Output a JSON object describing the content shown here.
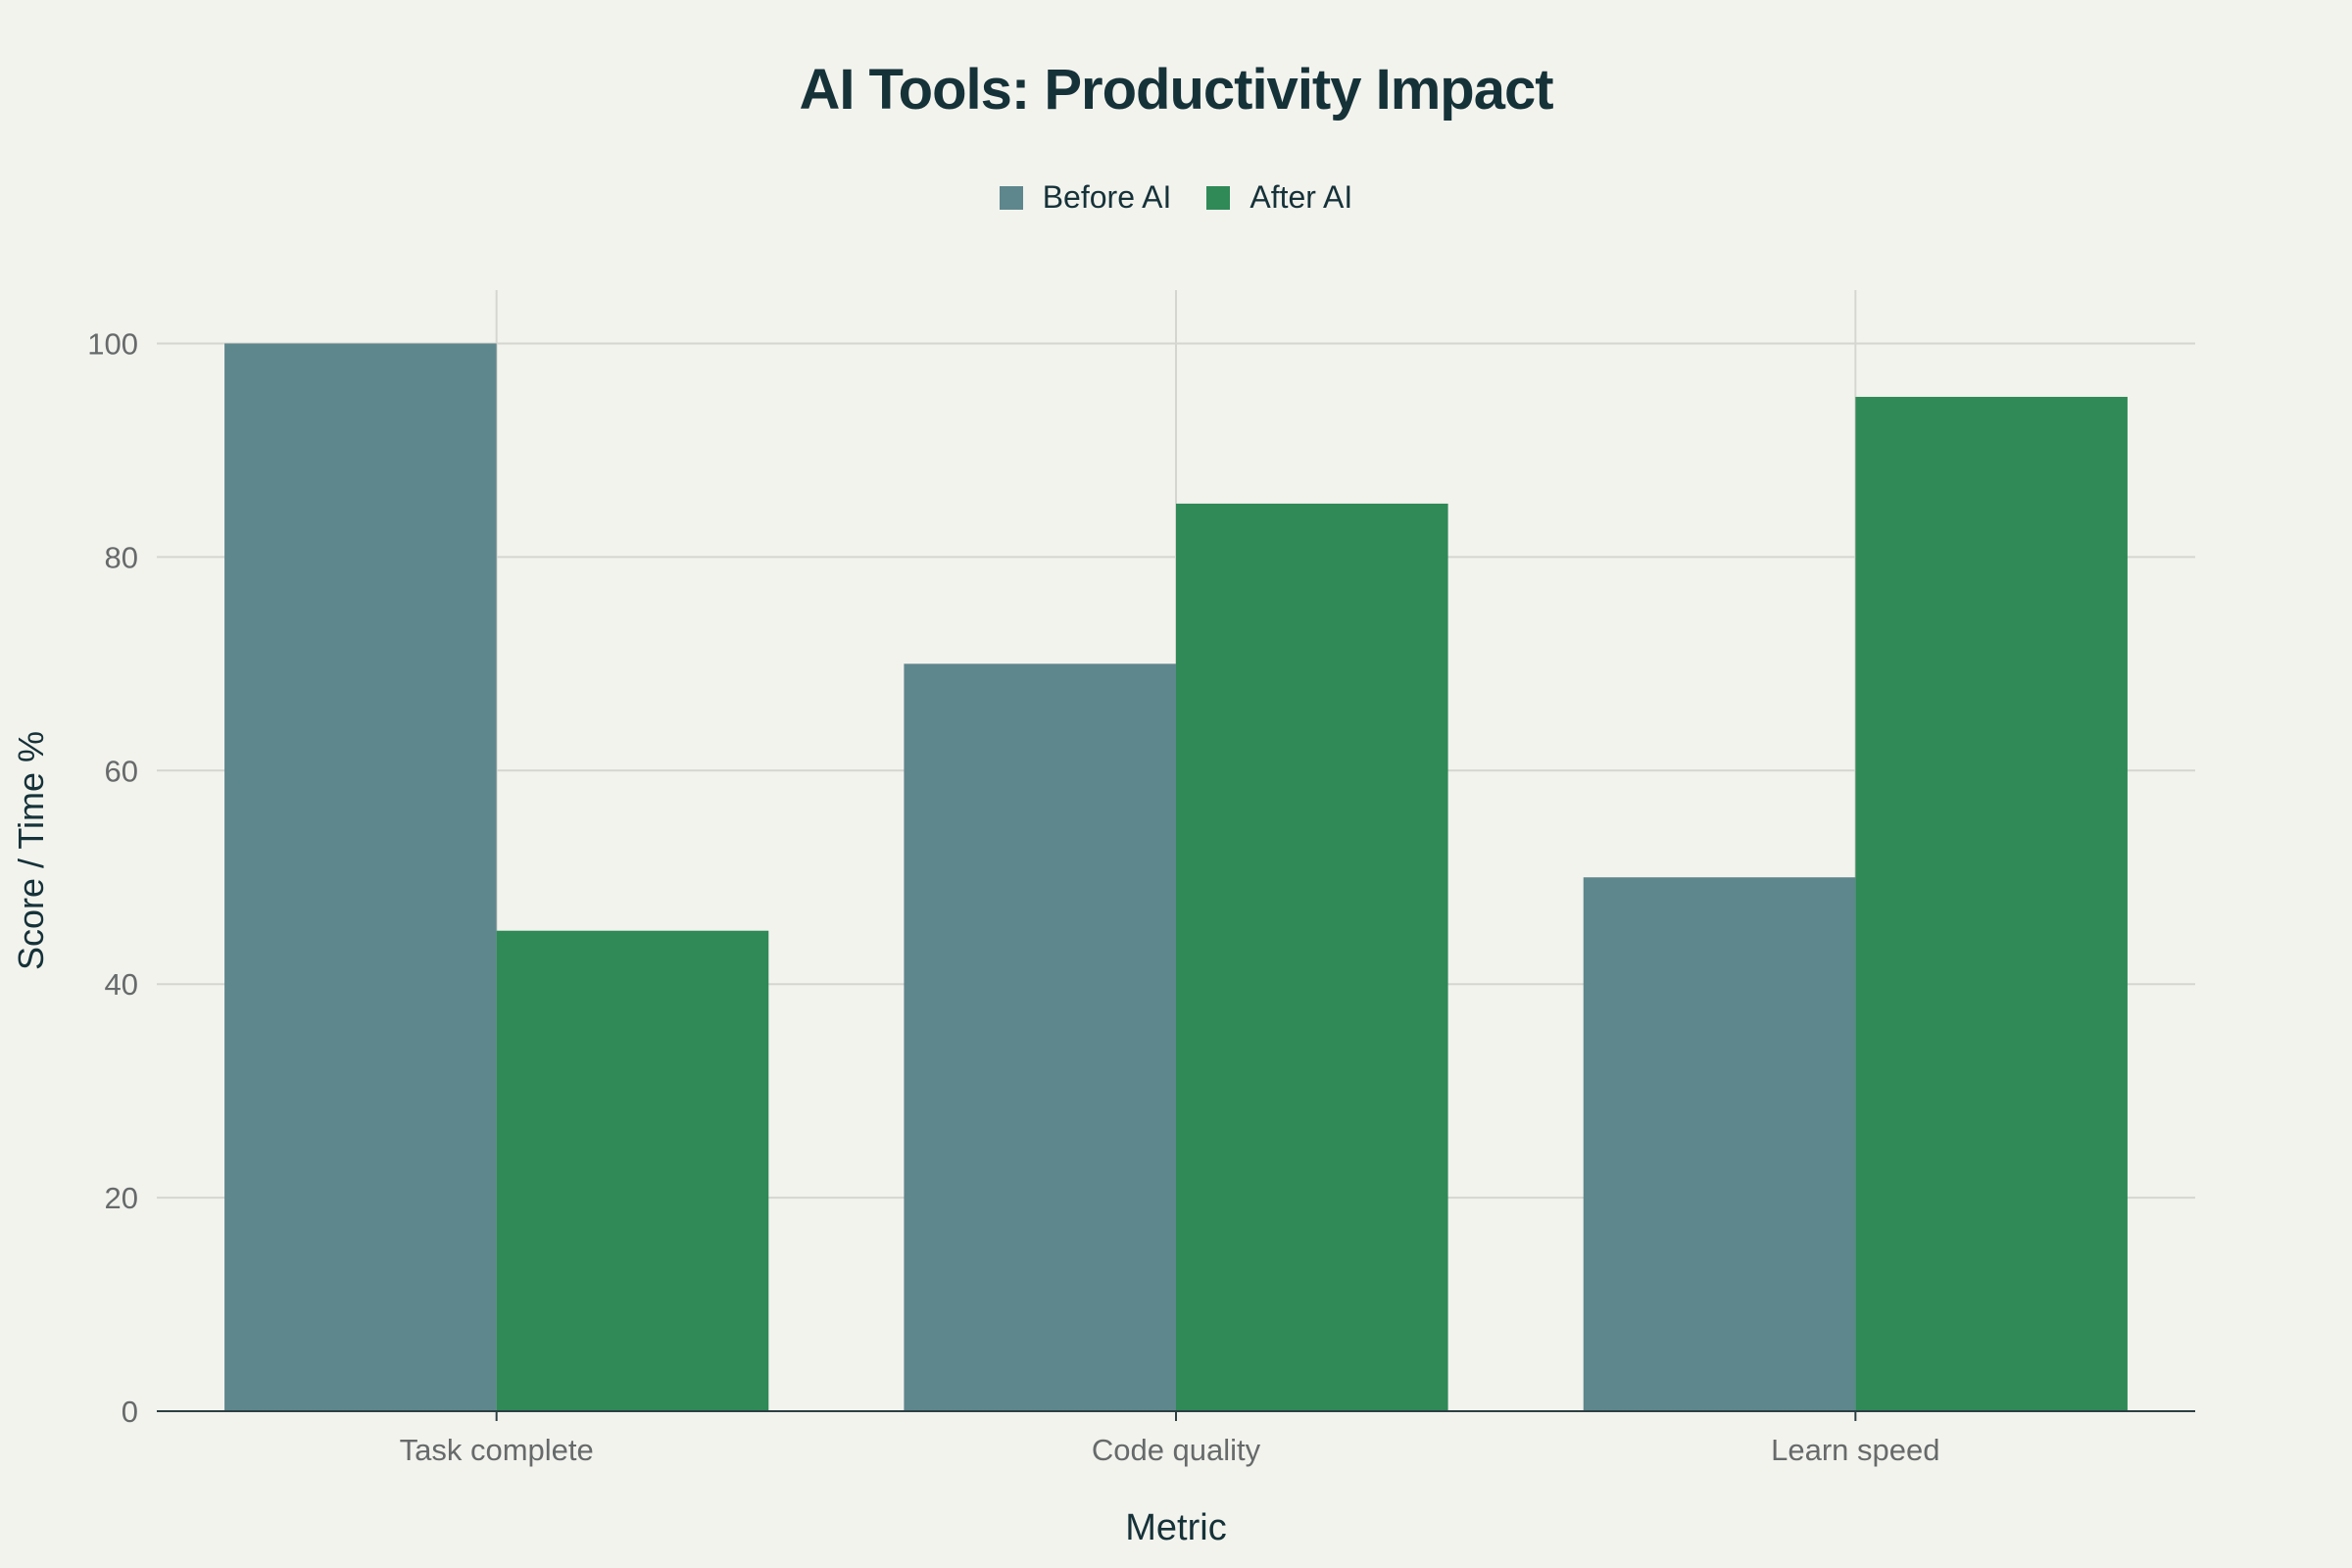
{
  "chart_data": {
    "type": "bar",
    "title": "AI Tools: Productivity Impact",
    "xlabel": "Metric",
    "ylabel": "Score / Time %",
    "categories": [
      "Task complete",
      "Code quality",
      "Learn speed"
    ],
    "series": [
      {
        "name": "Before AI",
        "values": [
          100,
          70,
          50
        ],
        "color": "#5e878d"
      },
      {
        "name": "After AI",
        "values": [
          45,
          85,
          95
        ],
        "color": "#2f8a57"
      }
    ],
    "ylim": [
      0,
      105
    ],
    "yticks": [
      0,
      20,
      40,
      60,
      80,
      100
    ],
    "grid": true,
    "legend_position": "top-center"
  }
}
